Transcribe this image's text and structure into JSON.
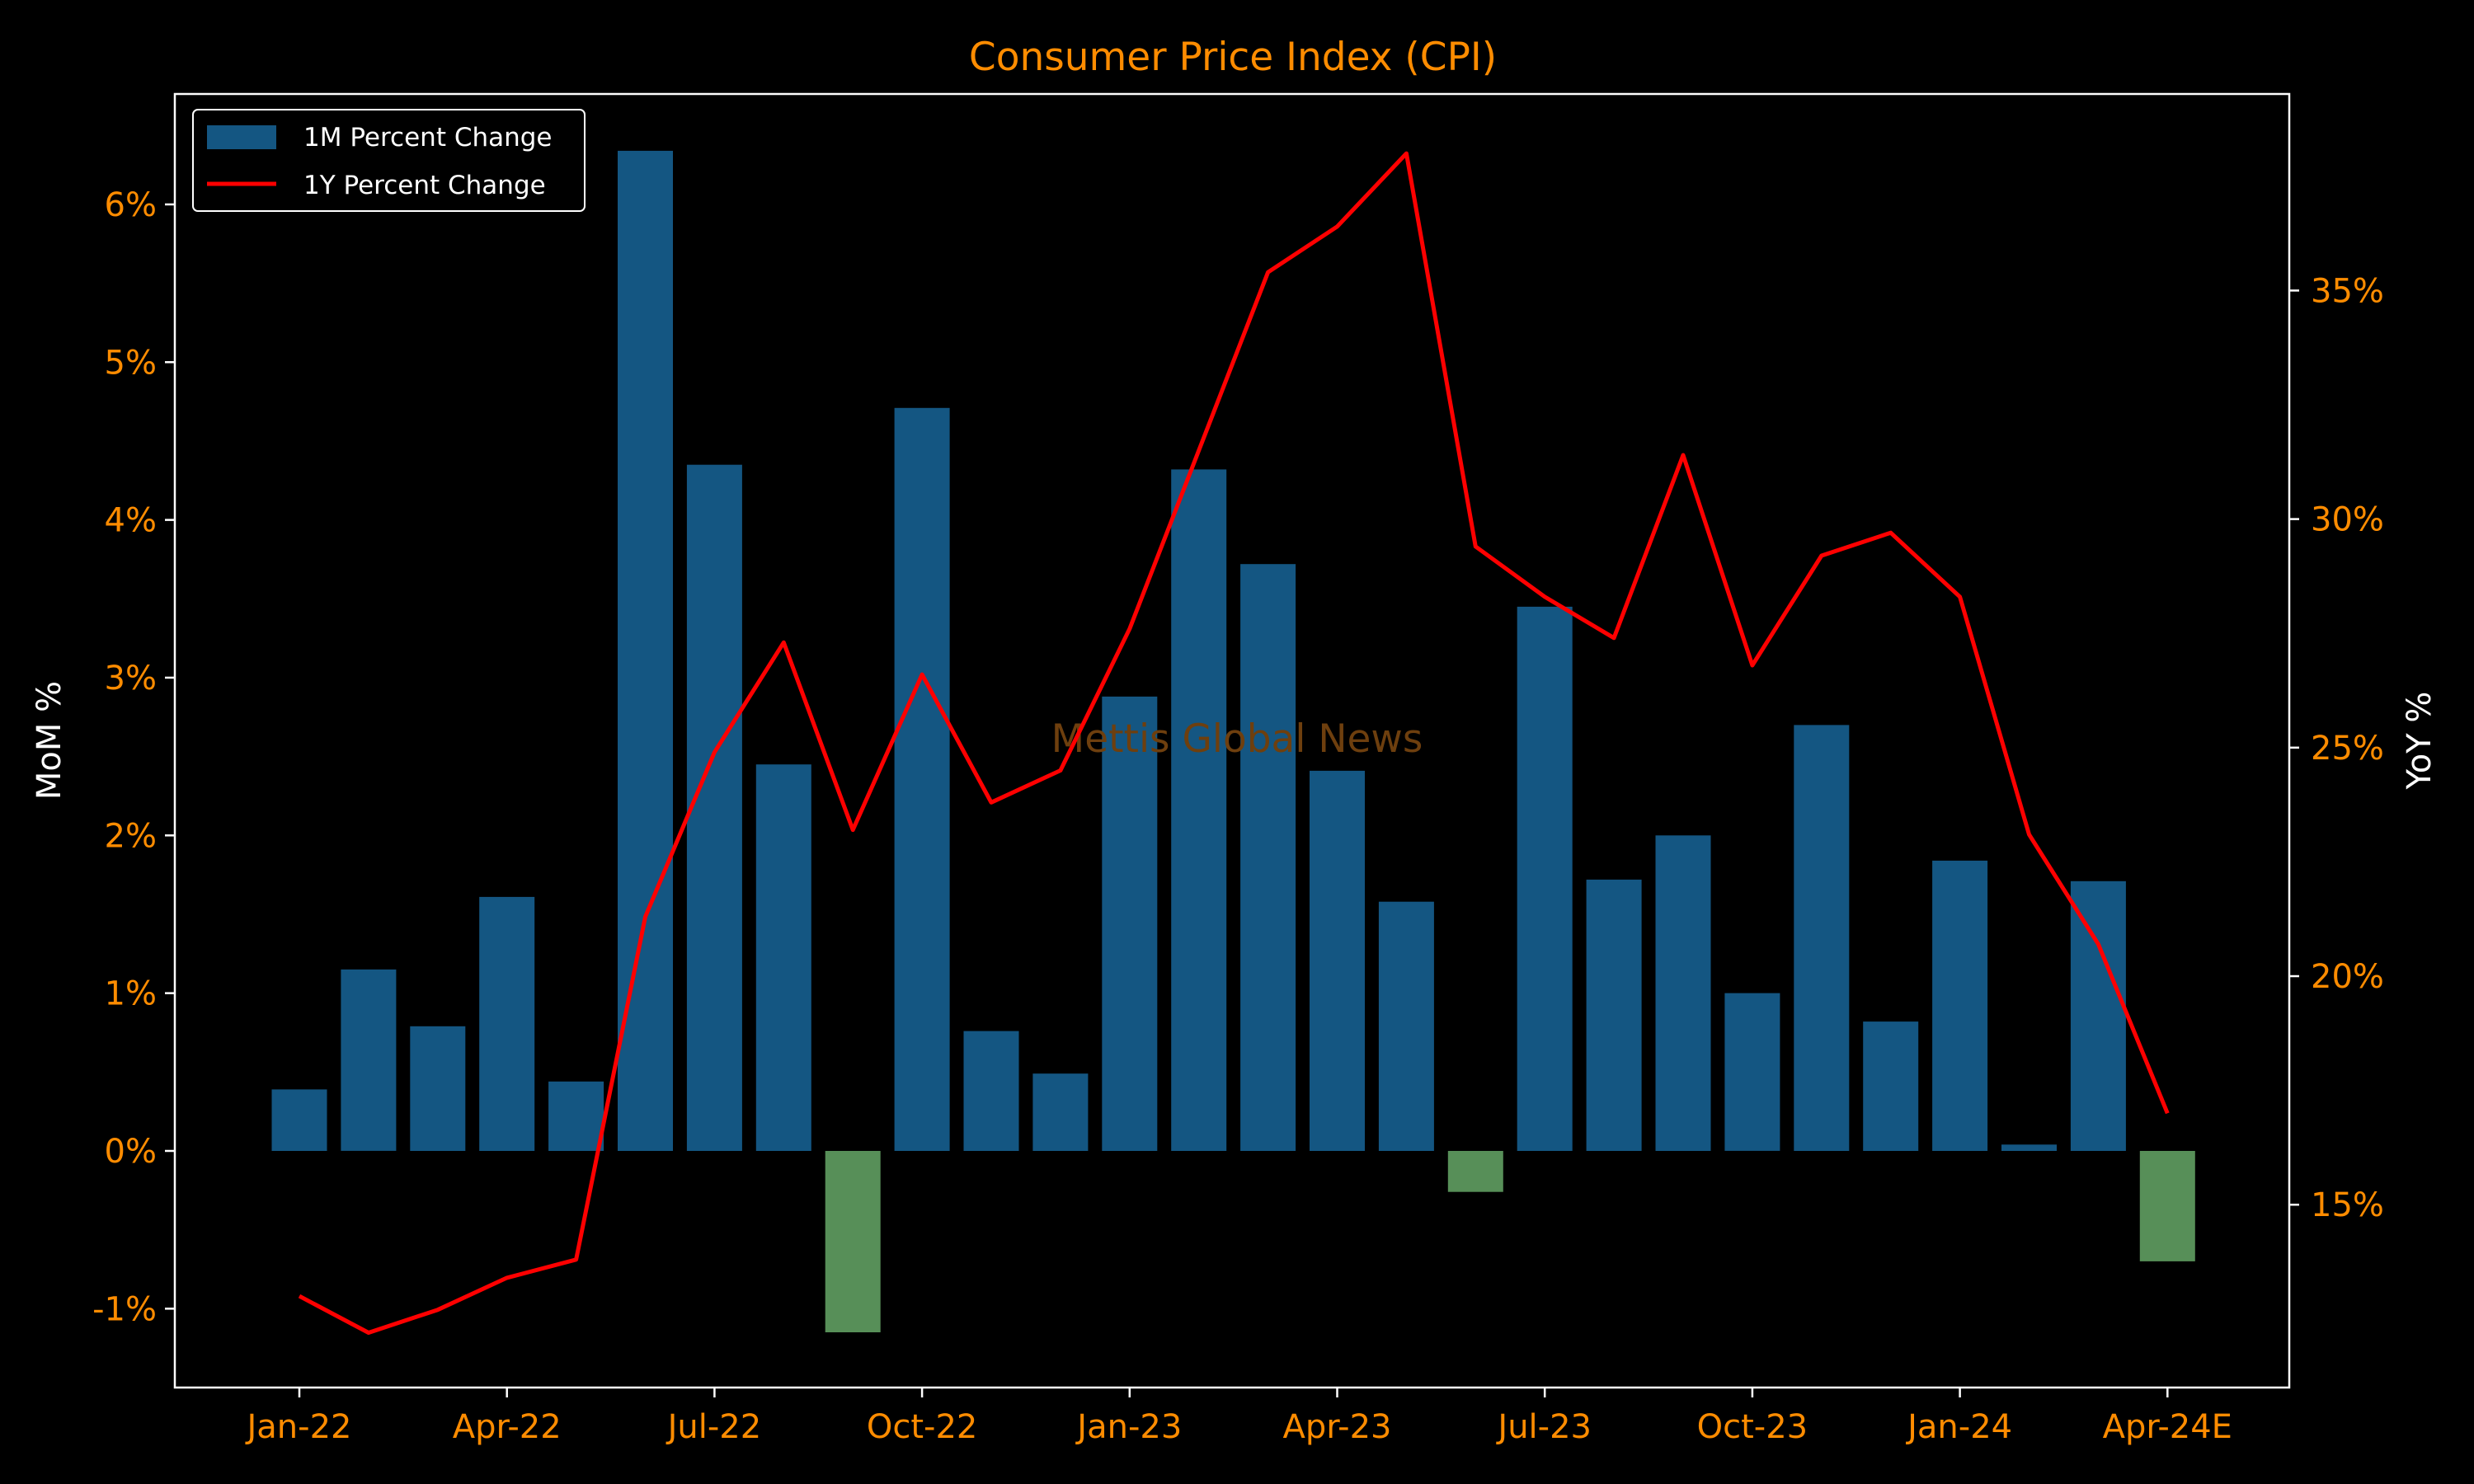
{
  "chart_data": {
    "type": "bar",
    "title": "Consumer Price Index (CPI)",
    "watermark": "Mettis Global News",
    "xlabel": "",
    "ylabel_left": "MoM %",
    "ylabel_right": "YoY %",
    "x_tick_labels": [
      "Jan-22",
      "Apr-22",
      "Jul-22",
      "Oct-22",
      "Jan-23",
      "Apr-23",
      "Jul-23",
      "Oct-23",
      "Jan-24",
      "Apr-24E"
    ],
    "left_axis": {
      "ylim": [
        -1.5,
        6.7
      ],
      "ticks": [
        -1,
        0,
        1,
        2,
        3,
        4,
        5,
        6
      ],
      "tick_suffix": "%"
    },
    "right_axis": {
      "ylim": [
        11,
        39.3
      ],
      "ticks": [
        15,
        20,
        25,
        30,
        35
      ],
      "tick_suffix": "%"
    },
    "categories": [
      "Jan-22",
      "Feb-22",
      "Mar-22",
      "Apr-22",
      "May-22",
      "Jun-22",
      "Jul-22",
      "Aug-22",
      "Sep-22",
      "Oct-22",
      "Nov-22",
      "Dec-22",
      "Jan-23",
      "Feb-23",
      "Mar-23",
      "Apr-23",
      "May-23",
      "Jun-23",
      "Jul-23",
      "Aug-23",
      "Sep-23",
      "Oct-23",
      "Nov-23",
      "Dec-23",
      "Jan-24",
      "Feb-24",
      "Mar-24",
      "Apr-24E"
    ],
    "series": [
      {
        "name": "1M Percent Change",
        "type": "bar",
        "axis": "left",
        "values": [
          0.39,
          1.15,
          0.79,
          1.61,
          0.44,
          6.34,
          4.35,
          2.45,
          -1.15,
          4.71,
          0.76,
          0.49,
          2.88,
          4.32,
          3.72,
          2.41,
          1.58,
          -0.26,
          3.45,
          1.72,
          2.0,
          1.0,
          2.7,
          0.82,
          1.84,
          0.04,
          1.71,
          -0.7
        ]
      },
      {
        "name": "1Y Percent Change",
        "type": "line",
        "axis": "right",
        "values": [
          13.0,
          12.2,
          12.7,
          13.4,
          13.8,
          21.3,
          24.9,
          27.3,
          23.2,
          26.6,
          23.8,
          24.5,
          27.6,
          31.5,
          35.4,
          36.4,
          38.0,
          29.4,
          28.3,
          27.4,
          31.4,
          26.8,
          29.2,
          29.7,
          28.3,
          23.1,
          20.7,
          17.0
        ]
      }
    ],
    "legend_position": "top-left",
    "grid": false,
    "colors": {
      "background": "#000000",
      "bar_positive": "#145682",
      "bar_negative": "#578f58",
      "line": "#ff0000",
      "tick_text": "#ff8c00",
      "title": "#ff8c00",
      "axis_frame": "#ffffff",
      "watermark": "#6e3f0e"
    }
  }
}
